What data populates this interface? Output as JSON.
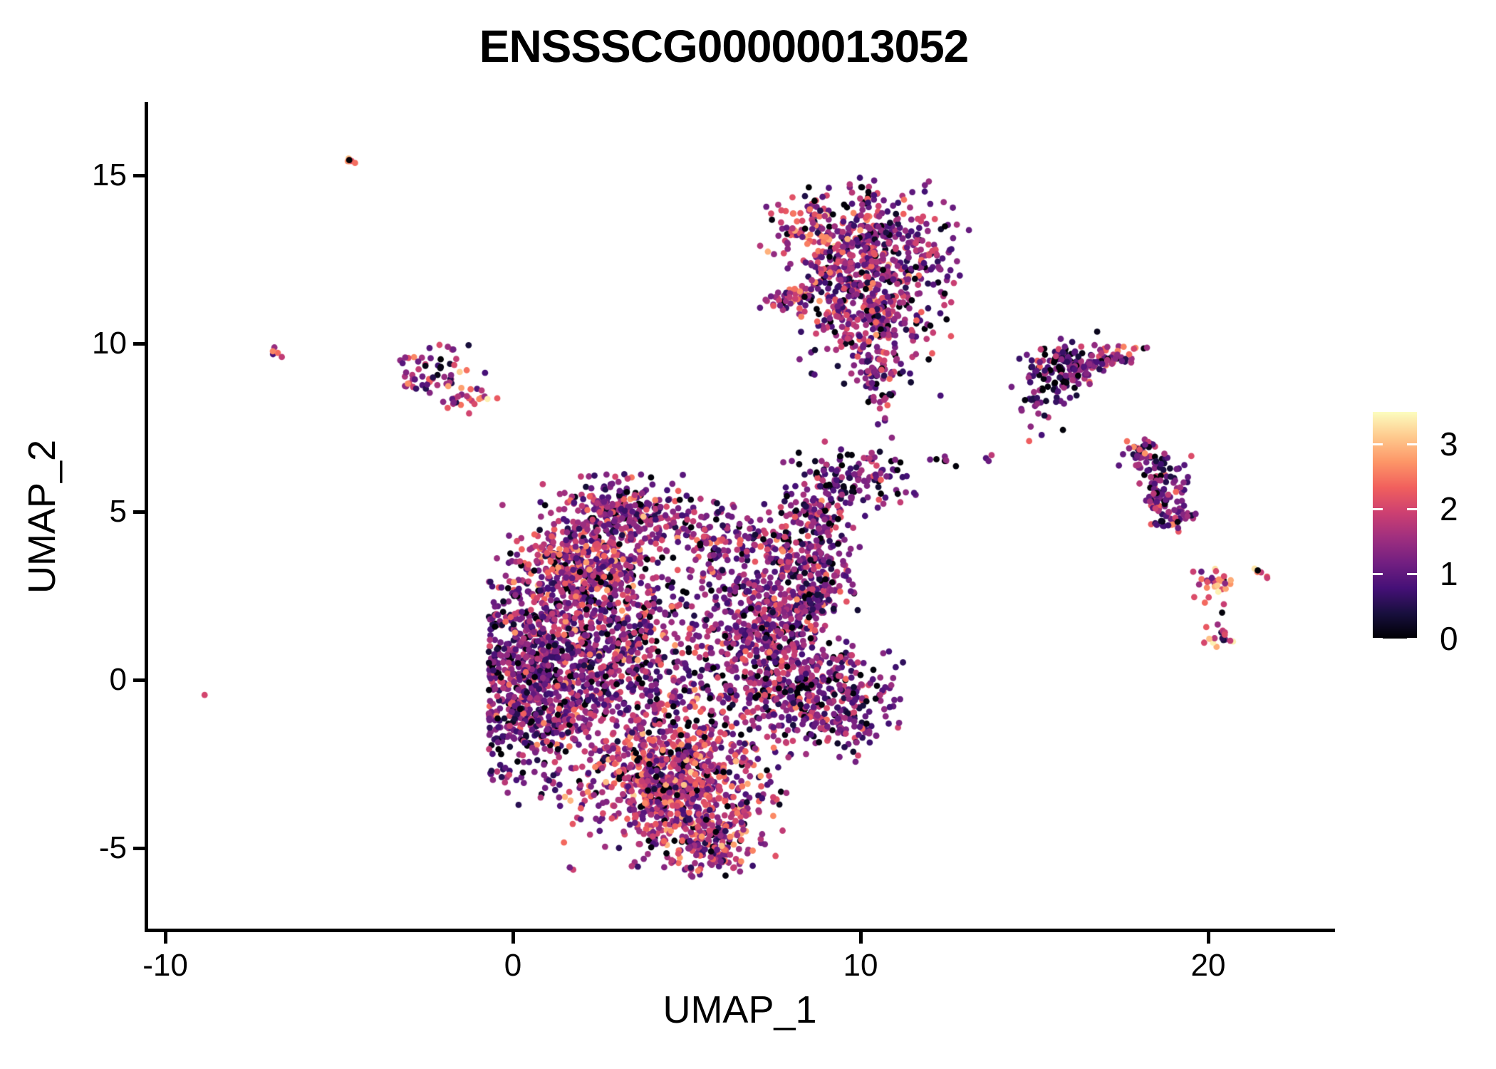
{
  "title": "ENSSSCG00000013052",
  "axes": {
    "x": {
      "label": "UMAP_1",
      "ticks": [
        -10,
        0,
        10,
        20
      ],
      "range": [
        -10.55,
        23.6
      ]
    },
    "y": {
      "label": "UMAP_2",
      "ticks": [
        15,
        10,
        5,
        0,
        -5
      ],
      "range": [
        -7.45,
        17.2
      ]
    }
  },
  "legend": {
    "ticks": [
      3,
      2,
      1,
      0
    ],
    "range": [
      0,
      3.5
    ]
  },
  "colors": {
    "background": "#ffffff",
    "axis": "#000000",
    "text": "#000000",
    "colormap_magma_stops": [
      "#000004",
      "#180f3e",
      "#451077",
      "#721f81",
      "#9f2f7f",
      "#cd4071",
      "#f1605d",
      "#fd9567",
      "#fec98d",
      "#fcfdbf"
    ]
  },
  "chart_data": {
    "type": "scatter",
    "title": "ENSSSCG00000013052",
    "xlabel": "UMAP_1",
    "ylabel": "UMAP_2",
    "xlim": [
      -10.55,
      23.6
    ],
    "ylim": [
      -7.45,
      17.2
    ],
    "grid": false,
    "legend_position": "right",
    "color_scale": {
      "name": "magma",
      "domain": [
        0,
        3.5
      ],
      "stops": [
        "#000004",
        "#180f3e",
        "#451077",
        "#721f81",
        "#9f2f7f",
        "#cd4071",
        "#f1605d",
        "#fd9567",
        "#fec98d",
        "#fcfdbf"
      ]
    },
    "clusters": [
      {
        "name": "streak-topleft",
        "x": -4.72,
        "y": 15.45,
        "sx": 0.1,
        "sy": 0.05,
        "ang": -40,
        "n": 7,
        "m": 2.5,
        "s": 0.5,
        "z": 0.1
      },
      {
        "name": "mini-left",
        "x": -6.8,
        "y": 9.7,
        "sx": 0.09,
        "sy": 0.06,
        "ang": -30,
        "n": 5,
        "m": 1.5,
        "s": 0.8,
        "z": 0.1
      },
      {
        "name": "lone-left",
        "x": -8.85,
        "y": -0.45,
        "sx": 0.02,
        "sy": 0.02,
        "n": 1,
        "m": 2.0,
        "s": 0.1,
        "z": 0
      },
      {
        "name": "left-small-a",
        "x": -2.1,
        "y": 9.2,
        "sx": 0.55,
        "sy": 0.35,
        "n": 45,
        "m": 1.4,
        "s": 0.75,
        "z": 0.05
      },
      {
        "name": "left-small-b",
        "x": -1.35,
        "y": 8.35,
        "sx": 0.45,
        "sy": 0.22,
        "n": 25,
        "m": 1.9,
        "s": 0.7,
        "z": 0.03
      },
      {
        "name": "left-small-c",
        "x": -2.75,
        "y": 8.9,
        "sx": 0.25,
        "sy": 0.18,
        "n": 12,
        "m": 1.6,
        "s": 0.8,
        "z": 0.05
      },
      {
        "name": "top-mid-a",
        "x": 8.85,
        "y": 13.35,
        "sx": 0.75,
        "sy": 0.55,
        "n": 130,
        "m": 1.9,
        "s": 0.6,
        "z": 0.06
      },
      {
        "name": "top-mid-b",
        "x": 10.85,
        "y": 12.85,
        "sx": 1.05,
        "sy": 0.85,
        "n": 270,
        "m": 1.35,
        "s": 0.65,
        "z": 0.09
      },
      {
        "name": "top-mid-c",
        "x": 10.35,
        "y": 10.6,
        "sx": 0.95,
        "sy": 0.75,
        "n": 250,
        "m": 1.4,
        "s": 0.65,
        "z": 0.08
      },
      {
        "name": "top-mid-neck",
        "x": 10.55,
        "y": 8.9,
        "sx": 0.28,
        "sy": 0.65,
        "n": 55,
        "m": 1.2,
        "s": 0.6,
        "z": 0.08
      },
      {
        "name": "top-mid-streak",
        "x": 8.0,
        "y": 11.4,
        "sx": 0.55,
        "sy": 0.12,
        "ang": 10,
        "n": 35,
        "m": 1.7,
        "s": 0.7,
        "z": 0.05
      },
      {
        "name": "top-mid-tip",
        "x": 10.2,
        "y": 14.4,
        "sx": 0.25,
        "sy": 0.35,
        "n": 22,
        "m": 1.3,
        "s": 0.7,
        "z": 0.08
      },
      {
        "name": "top-mid-d",
        "x": 9.4,
        "y": 11.9,
        "sx": 0.75,
        "sy": 0.6,
        "n": 160,
        "m": 1.4,
        "s": 0.6,
        "z": 0.08
      },
      {
        "name": "mid-right-ring",
        "x": 9.7,
        "y": 5.9,
        "sx": 0.85,
        "sy": 0.5,
        "n": 140,
        "m": 1.2,
        "s": 0.6,
        "z": 0.07
      },
      {
        "name": "mid-right-b",
        "x": 8.6,
        "y": 4.9,
        "sx": 0.5,
        "sy": 0.4,
        "n": 70,
        "m": 1.3,
        "s": 0.6,
        "z": 0.07
      },
      {
        "name": "mid-dots-a",
        "x": 12.45,
        "y": 6.5,
        "sx": 0.18,
        "sy": 0.1,
        "n": 6,
        "m": 1.2,
        "s": 0.6,
        "z": 0.1
      },
      {
        "name": "mid-dots-b",
        "x": 13.6,
        "y": 6.55,
        "sx": 0.1,
        "sy": 0.08,
        "n": 3,
        "m": 1.5,
        "s": 0.5,
        "z": 0
      },
      {
        "name": "right-a-main",
        "x": 15.75,
        "y": 9.3,
        "sx": 0.5,
        "sy": 0.45,
        "n": 140,
        "m": 1.0,
        "s": 0.6,
        "z": 0.12
      },
      {
        "name": "right-a-arm",
        "x": 17.1,
        "y": 9.55,
        "sx": 0.6,
        "sy": 0.18,
        "ang": 15,
        "n": 55,
        "m": 1.5,
        "s": 0.7,
        "z": 0.1
      },
      {
        "name": "right-a-tail",
        "x": 15.2,
        "y": 8.2,
        "sx": 0.45,
        "sy": 0.4,
        "n": 25,
        "m": 1.0,
        "s": 0.5,
        "z": 0.08
      },
      {
        "name": "right-b-top",
        "x": 18.15,
        "y": 6.7,
        "sx": 0.3,
        "sy": 0.3,
        "n": 45,
        "m": 1.4,
        "s": 0.7,
        "z": 0.1
      },
      {
        "name": "right-b-mid",
        "x": 18.7,
        "y": 5.6,
        "sx": 0.35,
        "sy": 0.5,
        "n": 85,
        "m": 1.2,
        "s": 0.6,
        "z": 0.08
      },
      {
        "name": "right-b-bot",
        "x": 19.05,
        "y": 4.85,
        "sx": 0.3,
        "sy": 0.2,
        "n": 35,
        "m": 1.3,
        "s": 0.6,
        "z": 0.08
      },
      {
        "name": "far-right-a",
        "x": 20.2,
        "y": 2.85,
        "sx": 0.3,
        "sy": 0.25,
        "n": 30,
        "m": 2.2,
        "s": 0.8,
        "z": 0.08
      },
      {
        "name": "far-right-b",
        "x": 20.35,
        "y": 1.3,
        "sx": 0.22,
        "sy": 0.18,
        "n": 18,
        "m": 2.0,
        "s": 0.9,
        "z": 0.08
      },
      {
        "name": "far-right-streak",
        "x": 21.45,
        "y": 3.3,
        "sx": 0.18,
        "sy": 0.07,
        "ang": -40,
        "n": 6,
        "m": 2.5,
        "s": 0.4,
        "z": 0.12
      },
      {
        "name": "central-upper",
        "x": 3.2,
        "y": 4.95,
        "sx": 1.05,
        "sy": 0.5,
        "n": 300,
        "m": 1.35,
        "s": 0.6,
        "z": 0.07
      },
      {
        "name": "central-upperleft",
        "x": 2.0,
        "y": 3.35,
        "sx": 0.95,
        "sy": 0.7,
        "n": 380,
        "m": 1.6,
        "s": 0.65,
        "z": 0.06
      },
      {
        "name": "central-left",
        "x": 0.55,
        "y": 0.0,
        "sx": 0.85,
        "sy": 1.6,
        "n": 700,
        "m": 1.25,
        "s": 0.6,
        "z": 0.07,
        "xmin": -0.7
      },
      {
        "name": "central-mid",
        "x": 3.0,
        "y": 0.7,
        "sx": 1.5,
        "sy": 1.5,
        "n": 850,
        "m": 1.3,
        "s": 0.65,
        "z": 0.08
      },
      {
        "name": "central-bottom",
        "x": 4.7,
        "y": -3.1,
        "sx": 1.35,
        "sy": 1.1,
        "n": 900,
        "m": 1.7,
        "s": 0.65,
        "z": 0.07
      },
      {
        "name": "central-right",
        "x": 7.2,
        "y": 1.4,
        "sx": 0.95,
        "sy": 1.5,
        "n": 600,
        "m": 1.3,
        "s": 0.6,
        "z": 0.08
      },
      {
        "name": "central-rightarm",
        "x": 8.6,
        "y": 3.1,
        "sx": 0.6,
        "sy": 0.85,
        "n": 230,
        "m": 1.3,
        "s": 0.6,
        "z": 0.08
      },
      {
        "name": "central-rightlow",
        "x": 9.0,
        "y": -0.6,
        "sx": 0.95,
        "sy": 0.8,
        "n": 330,
        "m": 1.25,
        "s": 0.6,
        "z": 0.09
      },
      {
        "name": "central-tail",
        "x": 5.6,
        "y": -4.9,
        "sx": 0.55,
        "sy": 0.5,
        "n": 130,
        "m": 1.5,
        "s": 0.6,
        "z": 0.08,
        "ymin": -5.85
      },
      {
        "name": "central-bridge",
        "x": 6.2,
        "y": 4.2,
        "sx": 0.85,
        "sy": 0.5,
        "n": 110,
        "m": 1.3,
        "s": 0.6,
        "z": 0.07
      }
    ],
    "extra_points": [
      {
        "x": 14.85,
        "y": 7.1,
        "e": 2.3
      },
      {
        "x": 10.5,
        "y": 7.6,
        "e": 0.9
      },
      {
        "x": 10.9,
        "y": 7.2,
        "e": 1.4
      },
      {
        "x": 12.0,
        "y": 6.55,
        "e": 1.1
      },
      {
        "x": 12.3,
        "y": 8.45,
        "e": 0.8
      },
      {
        "x": -0.3,
        "y": 5.2,
        "e": 1.6
      },
      {
        "x": 20.4,
        "y": 2.0,
        "e": 0.05
      },
      {
        "x": 20.45,
        "y": 2.25,
        "e": 1.9
      }
    ]
  }
}
